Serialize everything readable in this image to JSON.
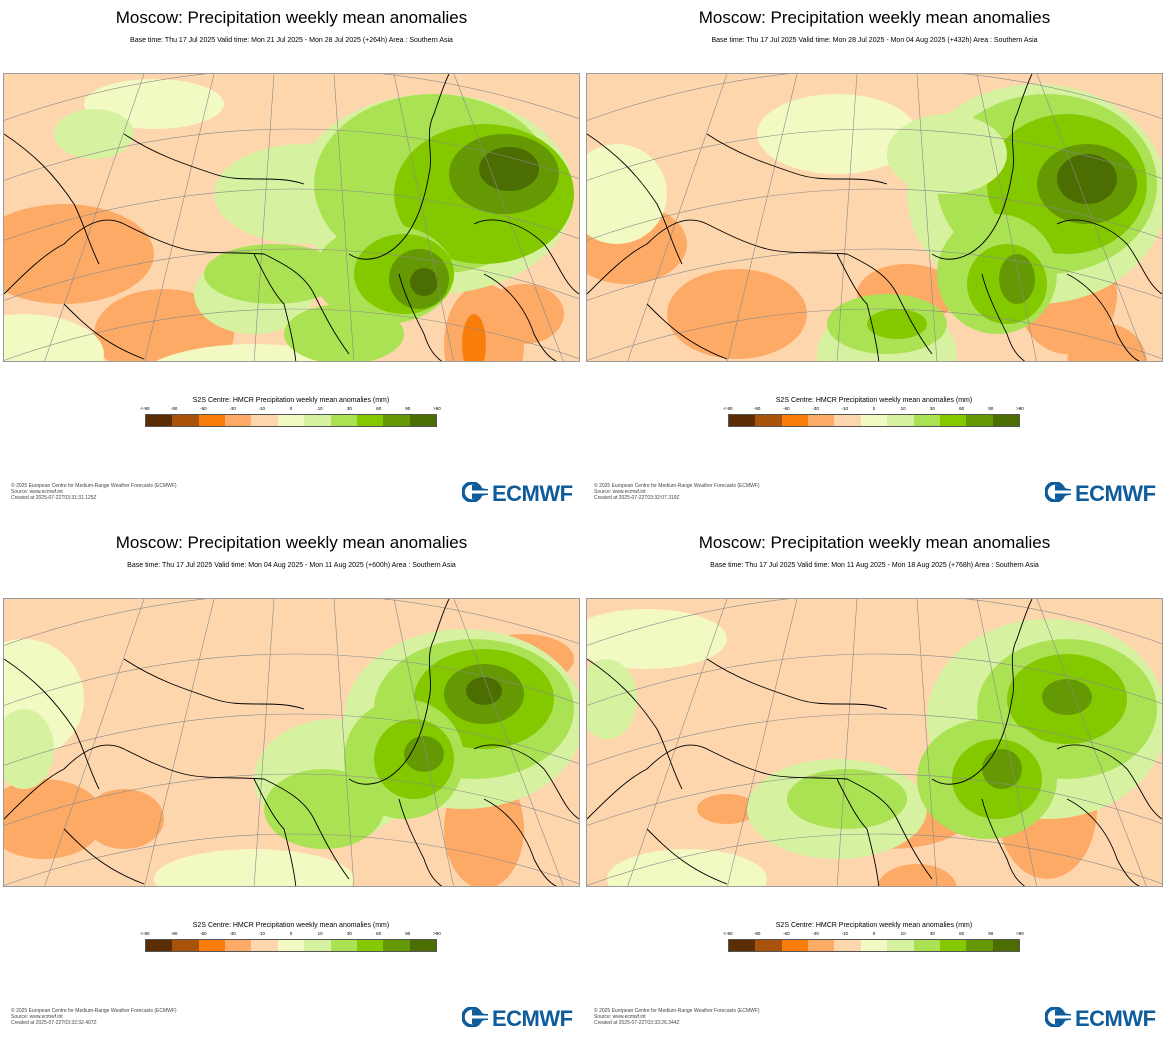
{
  "panels": [
    {
      "title": "Moscow: Precipitation weekly mean anomalies",
      "subtitle": "Base time: Thu 17 Jul 2025 Valid time: Mon 21 Jul 2025 - Mon 28 Jul 2025 (+264h) Area : Southern Asia",
      "footer": [
        "© 2025 European Centre for Medium-Range Weather Forecasts (ECMWF)",
        "Source: www.ecmwf.int",
        "Created at 2025-07-22T03:31:31.125Z"
      ]
    },
    {
      "title": "Moscow: Precipitation weekly mean anomalies",
      "subtitle": "Base time: Thu 17 Jul 2025 Valid time: Mon 28 Jul 2025 - Mon 04 Aug 2025 (+432h) Area : Southern Asia",
      "footer": [
        "© 2025 European Centre for Medium-Range Weather Forecasts (ECMWF)",
        "Source: www.ecmwf.int",
        "Created at 2025-07-22T03:32:07.319Z"
      ]
    },
    {
      "title": "Moscow: Precipitation weekly mean anomalies",
      "subtitle": "Base time: Thu 17 Jul 2025 Valid time: Mon 04 Aug 2025 - Mon 11 Aug 2025 (+600h) Area : Southern Asia",
      "footer": [
        "© 2025 European Centre for Medium-Range Weather Forecasts (ECMWF)",
        "Source: www.ecmwf.int",
        "Created at 2025-07-22T03:32:32.407Z"
      ]
    },
    {
      "title": "Moscow: Precipitation weekly mean anomalies",
      "subtitle": "Base time: Thu 17 Jul 2025 Valid time: Mon 11 Aug 2025 - Mon 18 Aug 2025 (+768h) Area : Southern Asia",
      "footer": [
        "© 2025 European Centre for Medium-Range Weather Forecasts (ECMWF)",
        "Source: www.ecmwf.int",
        "Created at 2025-07-22T03:33:26.344Z"
      ]
    }
  ],
  "legend": {
    "title": "S2S Centre: HMCR Precipitation weekly mean anomalies (mm)",
    "ticks": [
      "<-90",
      "-90",
      "-60",
      "-30",
      "-10",
      "0",
      "10",
      "30",
      "60",
      "90",
      ">90"
    ],
    "colors": [
      "#5a2d05",
      "#a9530a",
      "#f97d0a",
      "#fdaa66",
      "#fdd6ae",
      "#f3f9c2",
      "#d6f2a0",
      "#abe253",
      "#84c800",
      "#649903",
      "#4c6d02"
    ]
  },
  "logo": {
    "text": "ECMWF",
    "color": "#0e5c9b"
  },
  "palette": {
    "land_base": "#fdd6ae",
    "coast": "#000000",
    "grid": "#888888"
  }
}
